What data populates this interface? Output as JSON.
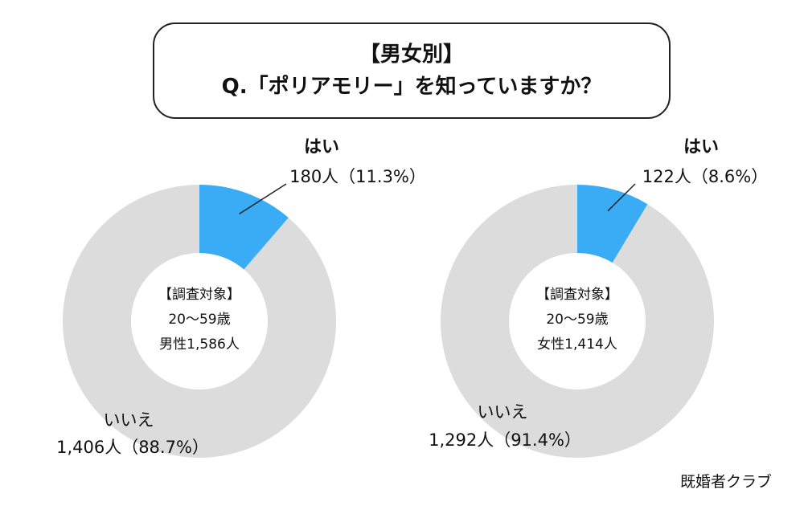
{
  "title": {
    "line1": "【男女別】",
    "line2": "Q.「ポリアモリー」を知っていますか？"
  },
  "colors": {
    "yes": "#3aabf5",
    "no": "#dcdcdc",
    "leader": "#222222"
  },
  "chart_data": [
    {
      "type": "pie",
      "name": "male",
      "center_label": [
        "【調査対象】",
        "20〜59歳",
        "男性1,586人"
      ],
      "slices": [
        {
          "label": "はい",
          "count_label": "180人（11.3%）",
          "count": 180,
          "percent": 11.3
        },
        {
          "label": "いいえ",
          "count_label": "1,406人（88.7%）",
          "count": 1406,
          "percent": 88.7
        }
      ]
    },
    {
      "type": "pie",
      "name": "female",
      "center_label": [
        "【調査対象】",
        "20〜59歳",
        "女性1,414人"
      ],
      "slices": [
        {
          "label": "はい",
          "count_label": "122人（8.6%）",
          "count": 122,
          "percent": 8.6
        },
        {
          "label": "いいえ",
          "count_label": "1,292人（91.4%）",
          "count": 1292,
          "percent": 91.4
        }
      ]
    }
  ],
  "source": "既婚者クラブ"
}
